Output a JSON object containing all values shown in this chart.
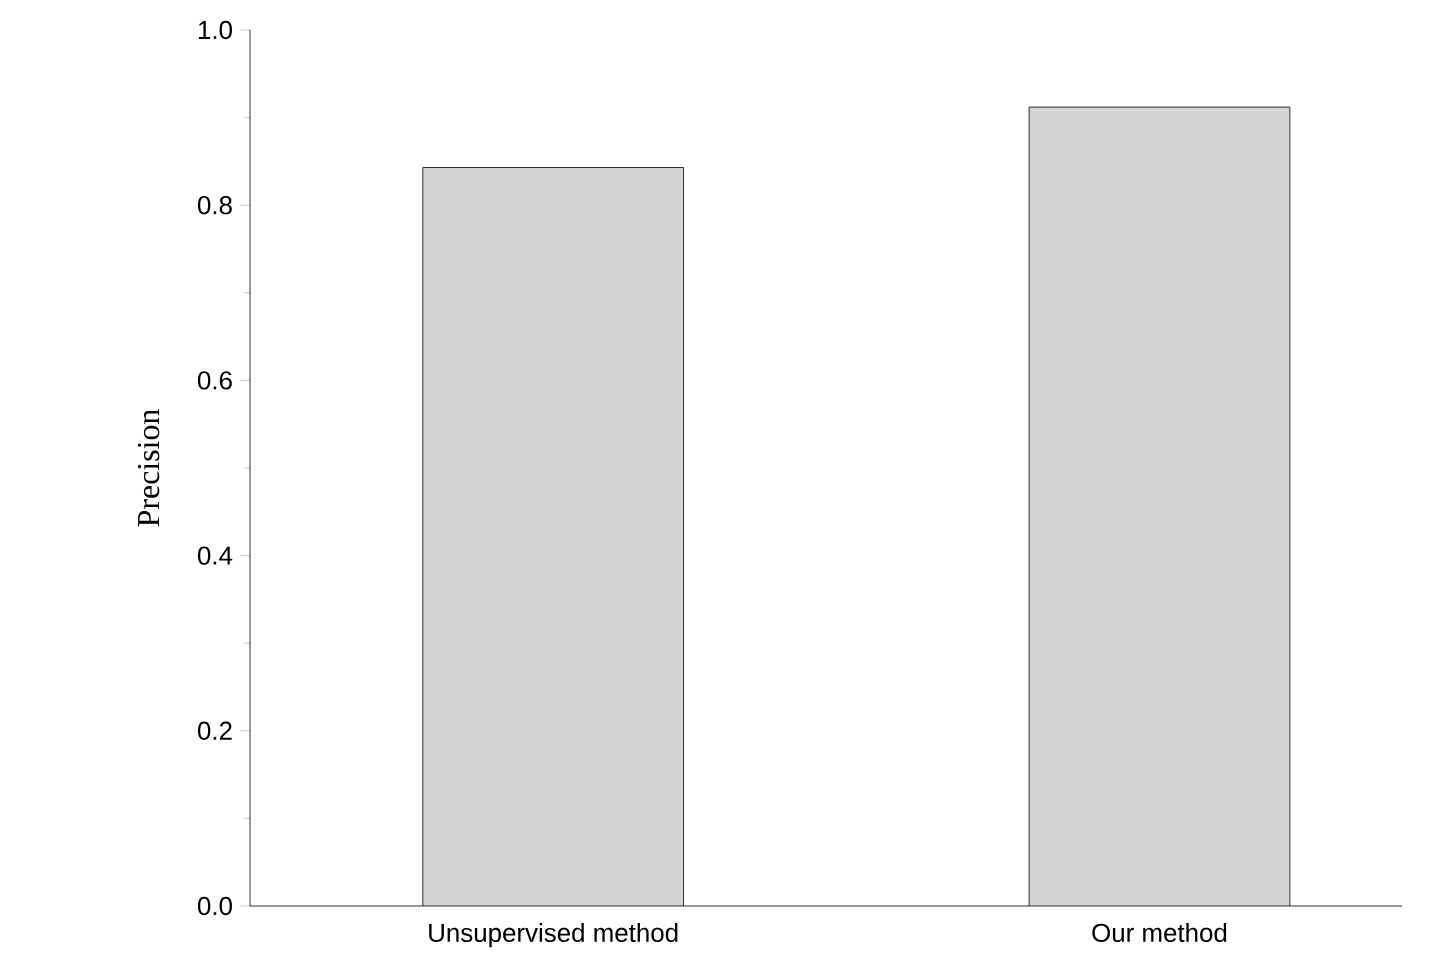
{
  "chart_data": {
    "type": "bar",
    "ylabel": "Precision",
    "categories": [
      "Unsupervised method",
      "Our method"
    ],
    "values": [
      0.843,
      0.912
    ],
    "color": "#d4d4d4",
    "ylim": [
      0,
      1.0
    ],
    "yticks": [
      {
        "value": 0,
        "label": "0.0"
      },
      {
        "value": 0.2,
        "label": "0.2"
      },
      {
        "value": 0.4,
        "label": "0.4"
      },
      {
        "value": 0.6,
        "label": "0.6"
      },
      {
        "value": 0.8,
        "label": "0.8"
      },
      {
        "value": 1.0,
        "label": "1.0"
      }
    ]
  }
}
